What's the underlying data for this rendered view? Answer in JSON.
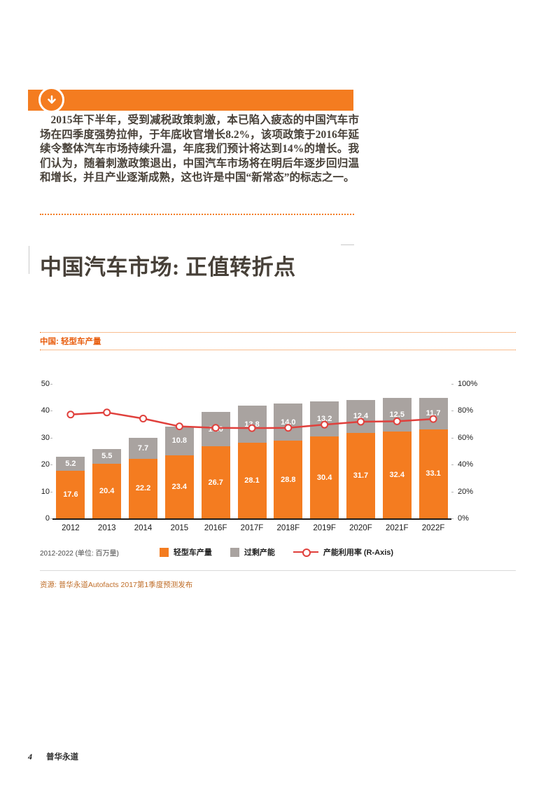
{
  "intro": {
    "text": "2015年下半年，受到减税政策刺激，本已陷入疲态的中国汽车市场在四季度强势拉伸，于年底收官增长8.2%，该项政策于2016年延续令整体汽车市场持续升温，年底我们预计将达到14%的增长。我们认为，随着刺激政策退出，中国汽车市场将在明后年逐步回归温和增长，并且产业逐渐成熟，这也许是中国“新常态”的标志之一。"
  },
  "heading": "中国汽车市场: 正值转折点",
  "chart": {
    "section_label": "中国: 轻型车产量",
    "note": "2012-2022 (单位: 百万量)",
    "source": "资源: 普华永道Autofacts 2017第1季度预测发布"
  },
  "chart_data": {
    "type": "bar",
    "subtype": "stacked-bar-with-line",
    "title": "中国: 轻型车产量",
    "categories": [
      "2012",
      "2013",
      "2014",
      "2015",
      "2016F",
      "2017F",
      "2018F",
      "2019F",
      "2020F",
      "2021F",
      "2022F"
    ],
    "series": [
      {
        "name": "轻型车产量",
        "type": "bar",
        "axis": "left",
        "color": "#f47c20",
        "values": [
          17.6,
          20.4,
          22.2,
          23.4,
          26.7,
          28.1,
          28.8,
          30.4,
          31.7,
          32.4,
          33.1
        ]
      },
      {
        "name": "过剩产能",
        "type": "bar",
        "axis": "left",
        "color": "#a9a3a0",
        "values": [
          5.2,
          5.5,
          7.7,
          10.8,
          13.0,
          13.8,
          14.0,
          13.2,
          12.4,
          12.5,
          11.7
        ]
      },
      {
        "name": "产能利用率 (R-Axis)",
        "type": "line",
        "axis": "right",
        "color": "#e0403c",
        "values": [
          77.2,
          78.8,
          74.2,
          68.4,
          67.3,
          67.1,
          67.3,
          69.7,
          71.9,
          72.2,
          73.9
        ]
      }
    ],
    "left_axis": {
      "min": 0,
      "max": 50,
      "ticks": [
        0,
        10,
        20,
        30,
        40,
        50
      ]
    },
    "right_axis": {
      "min": 0,
      "max": 100,
      "ticks": [
        "0%",
        "20%",
        "40%",
        "60%",
        "80%",
        "100%"
      ]
    },
    "legend_position": "bottom",
    "grid": false
  },
  "accent": {
    "orange": "#f47c20",
    "gray": "#a9a3a0",
    "red": "#e0403c"
  },
  "footer": {
    "page_number": "4",
    "brand": "普华永道"
  }
}
